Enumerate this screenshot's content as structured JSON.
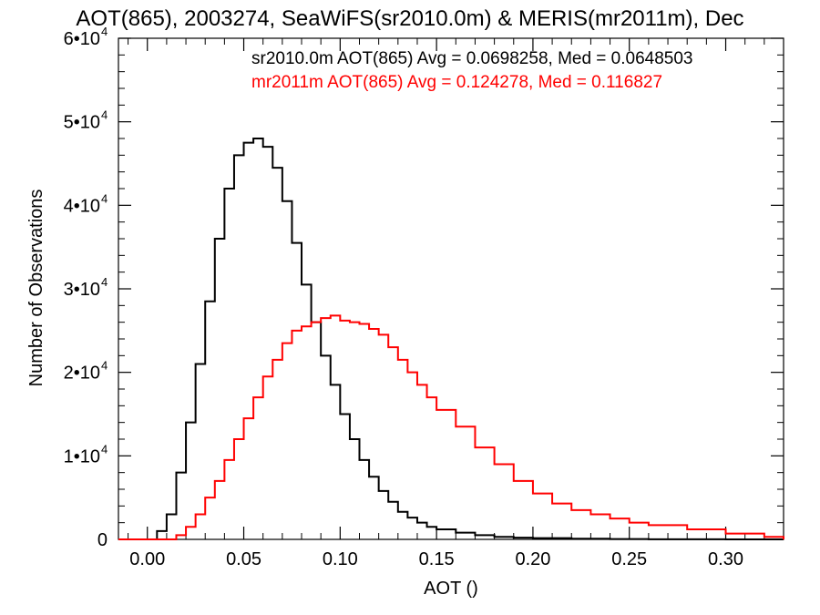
{
  "chart_data": {
    "type": "line",
    "title": "AOT(865), 2003274, SeaWiFS(sr2010.0m) & MERIS(mr2011m), Dec",
    "xlabel": "AOT ()",
    "ylabel": "Number of Observations",
    "xlim": [
      -0.015,
      0.33
    ],
    "ylim": [
      0,
      60000
    ],
    "x_ticks": [
      "0.00",
      "0.05",
      "0.10",
      "0.15",
      "0.20",
      "0.25",
      "0.30"
    ],
    "y_ticks": [
      {
        "value": 0,
        "mantissa": "0",
        "exponent": ""
      },
      {
        "value": 10000,
        "mantissa": "1•10",
        "exponent": "4"
      },
      {
        "value": 20000,
        "mantissa": "2•10",
        "exponent": "4"
      },
      {
        "value": 30000,
        "mantissa": "3•10",
        "exponent": "4"
      },
      {
        "value": 40000,
        "mantissa": "4•10",
        "exponent": "4"
      },
      {
        "value": 50000,
        "mantissa": "5•10",
        "exponent": "4"
      },
      {
        "value": 60000,
        "mantissa": "6•10",
        "exponent": "4"
      }
    ],
    "grid": false,
    "legend_position": "top-right",
    "series": [
      {
        "name": "sr2010.0m AOT(865) Avg = 0.0698258, Med = 0.0648503",
        "color": "#000000",
        "x": [
          0.0,
          0.005,
          0.01,
          0.015,
          0.02,
          0.025,
          0.03,
          0.035,
          0.04,
          0.045,
          0.05,
          0.055,
          0.058,
          0.06,
          0.065,
          0.07,
          0.075,
          0.08,
          0.085,
          0.09,
          0.095,
          0.1,
          0.105,
          0.11,
          0.115,
          0.12,
          0.125,
          0.13,
          0.135,
          0.14,
          0.145,
          0.15,
          0.16,
          0.17,
          0.18,
          0.19,
          0.2,
          0.22,
          0.24,
          0.26,
          0.28,
          0.3,
          0.32,
          0.33
        ],
        "y": [
          0,
          1000,
          3000,
          8000,
          14000,
          21000,
          28500,
          36000,
          42000,
          46000,
          47500,
          48000,
          48000,
          47000,
          44500,
          40500,
          35500,
          30500,
          26000,
          22000,
          18500,
          15000,
          12000,
          9500,
          7500,
          5800,
          4500,
          3300,
          2600,
          2000,
          1500,
          1200,
          800,
          500,
          300,
          200,
          150,
          80,
          40,
          20,
          10,
          5,
          0,
          0
        ]
      },
      {
        "name": "mr2011m AOT(865) Avg = 0.124278, Med = 0.116827",
        "color": "#ff0000",
        "x": [
          0.01,
          0.015,
          0.02,
          0.025,
          0.03,
          0.035,
          0.04,
          0.045,
          0.05,
          0.055,
          0.06,
          0.065,
          0.07,
          0.075,
          0.08,
          0.085,
          0.09,
          0.095,
          0.1,
          0.105,
          0.11,
          0.115,
          0.12,
          0.125,
          0.13,
          0.135,
          0.14,
          0.145,
          0.15,
          0.16,
          0.17,
          0.18,
          0.19,
          0.2,
          0.21,
          0.22,
          0.23,
          0.24,
          0.25,
          0.26,
          0.28,
          0.3,
          0.32,
          0.33
        ],
        "y": [
          0,
          500,
          1500,
          3000,
          5000,
          7000,
          9500,
          12000,
          14500,
          17000,
          19500,
          21500,
          23500,
          25000,
          25500,
          26000,
          26500,
          26800,
          26200,
          26000,
          25800,
          25200,
          24500,
          23000,
          21500,
          20000,
          18500,
          17000,
          15500,
          13500,
          11000,
          9000,
          7000,
          5500,
          4300,
          3500,
          3000,
          2500,
          2000,
          1700,
          1200,
          700,
          300,
          0
        ]
      }
    ]
  }
}
